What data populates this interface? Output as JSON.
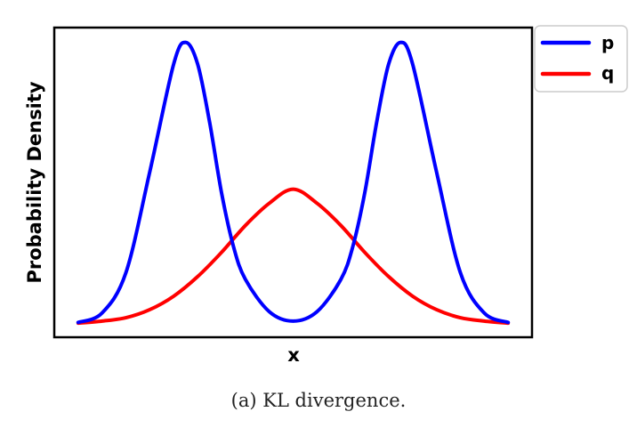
{
  "caption": "(a) KL divergence.",
  "chart_data": {
    "type": "line",
    "title": "",
    "xlabel": "x",
    "ylabel": "Probability Density",
    "xlim": [
      -5,
      5
    ],
    "ylim": [
      -0.02,
      0.44
    ],
    "x_ticks_visible": false,
    "y_ticks_visible": false,
    "grid": false,
    "legend": {
      "placement": "outside-top-right",
      "entries": [
        "p",
        "q"
      ]
    },
    "series": [
      {
        "name": "p",
        "color": "#0000ff",
        "description": "equal mixture of two Gaussians",
        "x": [
          -4.5,
          -4.0,
          -3.5,
          -3.0,
          -2.5,
          -2.25,
          -2.0,
          -1.75,
          -1.5,
          -1.25,
          -1.0,
          -0.5,
          0.0,
          0.5,
          1.0,
          1.25,
          1.5,
          1.75,
          2.0,
          2.25,
          2.5,
          3.0,
          3.5,
          4.0,
          4.5
        ],
        "y": [
          0.002,
          0.016,
          0.076,
          0.226,
          0.386,
          0.418,
          0.386,
          0.3,
          0.195,
          0.115,
          0.066,
          0.018,
          0.004,
          0.018,
          0.066,
          0.115,
          0.195,
          0.3,
          0.386,
          0.418,
          0.386,
          0.226,
          0.076,
          0.016,
          0.002
        ]
      },
      {
        "name": "q",
        "color": "#ff0000",
        "description": "single Gaussian",
        "x": [
          -4.5,
          -4.0,
          -3.5,
          -3.0,
          -2.5,
          -2.0,
          -1.5,
          -1.0,
          -0.5,
          0.0,
          0.5,
          1.0,
          1.5,
          2.0,
          2.5,
          3.0,
          3.5,
          4.0,
          4.5
        ],
        "y": [
          0.001,
          0.004,
          0.009,
          0.021,
          0.041,
          0.07,
          0.106,
          0.146,
          0.179,
          0.2,
          0.179,
          0.146,
          0.106,
          0.07,
          0.041,
          0.021,
          0.009,
          0.004,
          0.001
        ]
      }
    ]
  }
}
